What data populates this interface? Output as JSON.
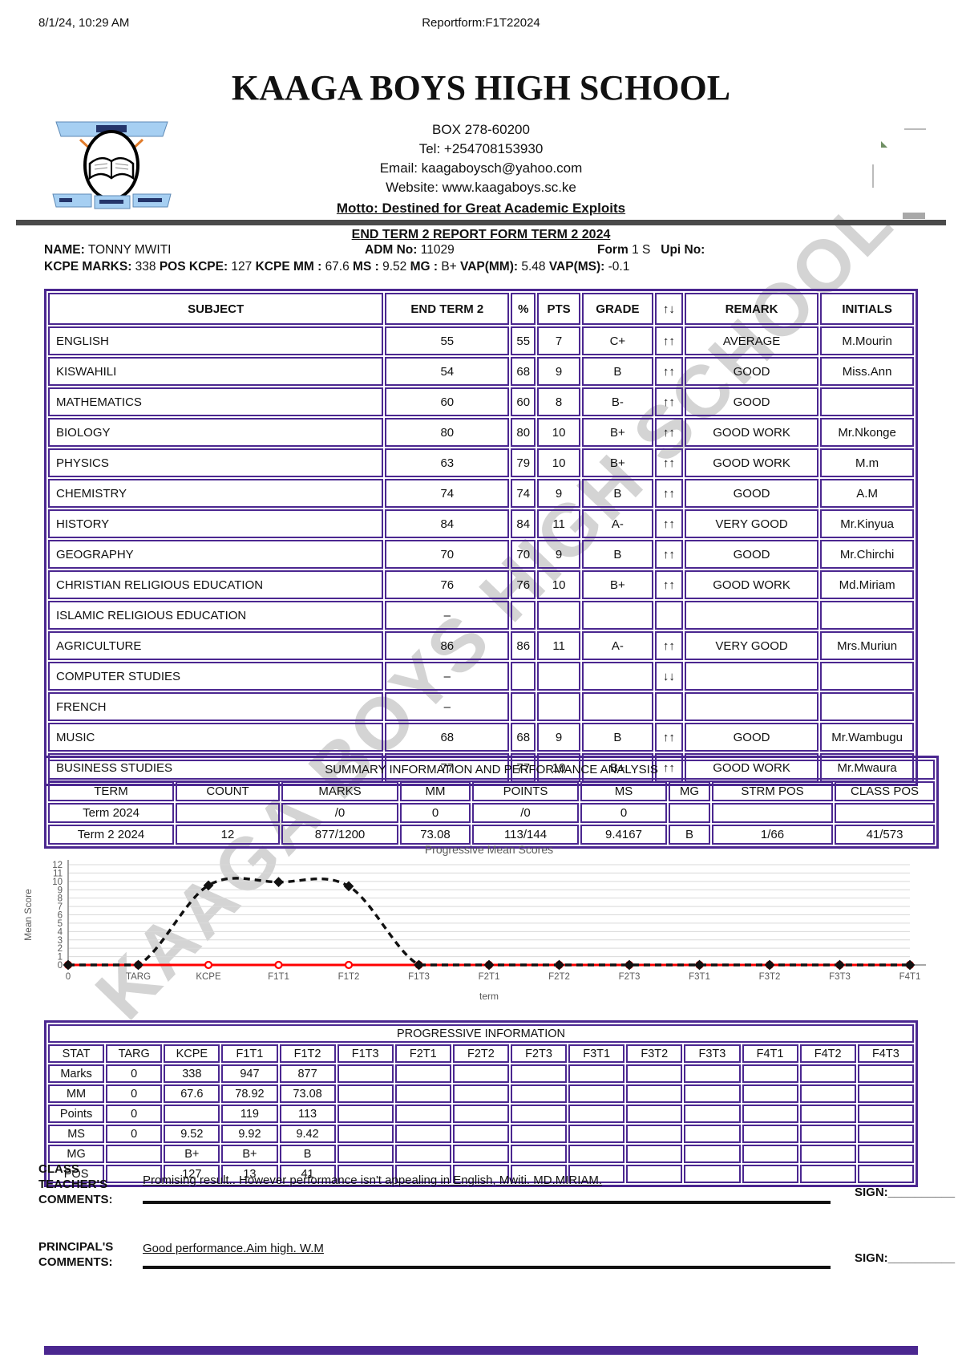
{
  "page_header": {
    "datetime": "8/1/24, 10:29 AM",
    "doc_title": "Reportform:F1T22024"
  },
  "school": {
    "name": "KAAGA BOYS HIGH SCHOOL",
    "box": "BOX 278-60200",
    "tel": "Tel: +254708153930",
    "email": "Email: kaagaboysch@yahoo.com",
    "website": "Website: www.kaagaboys.sc.ke",
    "motto": "Motto: Destined for Great Academic Exploits"
  },
  "report": {
    "title": "END TERM 2 REPORT FORM TERM 2 2024",
    "name_label": "NAME:",
    "name": "TONNY MWITI",
    "adm_label": "ADM No:",
    "adm": "11029",
    "form_label": "Form",
    "form": "1 S",
    "upi_label": "Upi No:",
    "kcpe_segments": [
      {
        "label": "KCPE MARKS:",
        "value": "338"
      },
      {
        "label": "POS KCPE:",
        "value": "127"
      },
      {
        "label": "KCPE MM :",
        "value": "67.6"
      },
      {
        "label": "MS :",
        "value": "9.52"
      },
      {
        "label": "MG :",
        "value": "B+"
      },
      {
        "label": "VAP(MM):",
        "value": "5.48"
      },
      {
        "label": "VAP(MS):",
        "value": "-0.1"
      }
    ]
  },
  "subjects_table": {
    "headers": [
      "SUBJECT",
      "END TERM 2",
      "%",
      "PTS",
      "GRADE",
      "↑↓",
      "REMARK",
      "INITIALS"
    ],
    "rows": [
      [
        "ENGLISH",
        "55",
        "55",
        "7",
        "C+",
        "↑↑",
        "AVERAGE",
        "M.Mourin"
      ],
      [
        "KISWAHILI",
        "54",
        "68",
        "9",
        "B",
        "↑↑",
        "GOOD",
        "Miss.Ann"
      ],
      [
        "MATHEMATICS",
        "60",
        "60",
        "8",
        "B-",
        "↑↑",
        "GOOD",
        ""
      ],
      [
        "BIOLOGY",
        "80",
        "80",
        "10",
        "B+",
        "↑↑",
        "GOOD WORK",
        "Mr.Nkonge"
      ],
      [
        "PHYSICS",
        "63",
        "79",
        "10",
        "B+",
        "↑↑",
        "GOOD WORK",
        "M.m"
      ],
      [
        "CHEMISTRY",
        "74",
        "74",
        "9",
        "B",
        "↑↑",
        "GOOD",
        "A.M"
      ],
      [
        "HISTORY",
        "84",
        "84",
        "11",
        "A-",
        "↑↑",
        "VERY GOOD",
        "Mr.Kinyua"
      ],
      [
        "GEOGRAPHY",
        "70",
        "70",
        "9",
        "B",
        "↑↑",
        "GOOD",
        "Mr.Chirchi"
      ],
      [
        "CHRISTIAN RELIGIOUS EDUCATION",
        "76",
        "76",
        "10",
        "B+",
        "↑↑",
        "GOOD WORK",
        "Md.Miriam"
      ],
      [
        "ISLAMIC RELIGIOUS EDUCATION",
        "–",
        "",
        "",
        "",
        "",
        "",
        ""
      ],
      [
        "AGRICULTURE",
        "86",
        "86",
        "11",
        "A-",
        "↑↑",
        "VERY GOOD",
        "Mrs.Muriun"
      ],
      [
        "COMPUTER STUDIES",
        "–",
        "",
        "",
        "",
        "↓↓",
        "",
        ""
      ],
      [
        "FRENCH",
        "–",
        "",
        "",
        "",
        "",
        "",
        ""
      ],
      [
        "MUSIC",
        "68",
        "68",
        "9",
        "B",
        "↑↑",
        "GOOD",
        "Mr.Wambugu"
      ],
      [
        "BUSINESS STUDIES",
        "77",
        "77",
        "10",
        "B+",
        "↑↑",
        "GOOD WORK",
        "Mr.Mwaura"
      ]
    ]
  },
  "summary_table": {
    "title": "SUMMARY INFORMATION AND PERFORMANCE ANALYSIS",
    "headers": [
      "TERM",
      "COUNT",
      "MARKS",
      "MM",
      "POINTS",
      "MS",
      "MG",
      "STRM POS",
      "CLASS POS"
    ],
    "rows": [
      [
        "Term 2024",
        "",
        "/0",
        "0",
        "/0",
        "0",
        "",
        "",
        ""
      ],
      [
        "Term 2 2024",
        "12",
        "877/1200",
        "73.08",
        "113/144",
        "9.4167",
        "B",
        "1/66",
        "41/573"
      ]
    ]
  },
  "chart_data": {
    "type": "line",
    "title": "Progressive Mean Scores",
    "xlabel": "term",
    "ylabel": "Mean Score",
    "ylim": [
      0,
      12
    ],
    "yticks": [
      0,
      1,
      2,
      3,
      4,
      5,
      6,
      7,
      8,
      9,
      10,
      11,
      12
    ],
    "grid": true,
    "legend": "none",
    "categories": [
      "0",
      "TARG",
      "KCPE",
      "F1T1",
      "F1T2",
      "F1T3",
      "F2T1",
      "F2T2",
      "F2T3",
      "F3T1",
      "F3T2",
      "F3T3",
      "F4T1"
    ],
    "series": [
      {
        "name": "mean score",
        "style": "dashed",
        "color": "#111111",
        "marker": "diamond",
        "values": [
          0,
          0,
          9.52,
          9.92,
          9.42,
          0,
          0,
          0,
          0,
          0,
          0,
          0,
          0
        ]
      },
      {
        "name": "target",
        "style": "solid",
        "color": "#ff0000",
        "marker": "circle",
        "values": [
          0,
          0,
          0,
          0,
          0,
          0,
          0,
          0,
          0,
          0,
          0,
          0,
          0
        ]
      }
    ]
  },
  "progressive_table": {
    "title": "PROGRESSIVE INFORMATION",
    "headers": [
      "STAT",
      "TARG",
      "KCPE",
      "F1T1",
      "F1T2",
      "F1T3",
      "F2T1",
      "F2T2",
      "F2T3",
      "F3T1",
      "F3T2",
      "F3T3",
      "F4T1",
      "F4T2",
      "F4T3"
    ],
    "rows": [
      [
        "Marks",
        "0",
        "338",
        "947",
        "877",
        "",
        "",
        "",
        "",
        "",
        "",
        "",
        "",
        "",
        ""
      ],
      [
        "MM",
        "0",
        "67.6",
        "78.92",
        "73.08",
        "",
        "",
        "",
        "",
        "",
        "",
        "",
        "",
        "",
        ""
      ],
      [
        "Points",
        "0",
        "",
        "119",
        "113",
        "",
        "",
        "",
        "",
        "",
        "",
        "",
        "",
        "",
        ""
      ],
      [
        "MS",
        "0",
        "9.52",
        "9.92",
        "9.42",
        "",
        "",
        "",
        "",
        "",
        "",
        "",
        "",
        "",
        ""
      ],
      [
        "MG",
        "",
        "B+",
        "B+",
        "B",
        "",
        "",
        "",
        "",
        "",
        "",
        "",
        "",
        "",
        ""
      ],
      [
        "POS",
        "",
        "127",
        "13",
        "41",
        "",
        "",
        "",
        "",
        "",
        "",
        "",
        "",
        "",
        ""
      ]
    ]
  },
  "comments": {
    "class_teacher_label": "CLASS TEACHER'S COMMENTS:",
    "class_teacher_text": "Promising result.. However performance isn't appealing in English, Mwiti. MD.MIRIAM.",
    "principal_label": "PRINCIPAL'S COMMENTS:",
    "principal_text": "Good performance.Aim high. W.M",
    "sign_label": "SIGN:__________"
  },
  "watermark": "KAAGA BOYS HIGH SCHOOL",
  "colors": {
    "table_border": "#4b2790",
    "divider": "#4a4a4a",
    "chart_series": "#111111",
    "chart_target": "#ff0000",
    "ribbon_blue": "#a6cff2"
  }
}
